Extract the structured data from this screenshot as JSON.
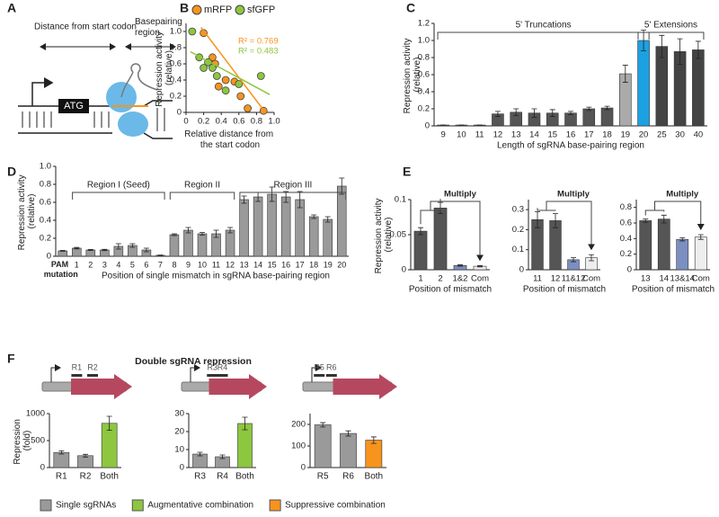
{
  "panel_labels": [
    "A",
    "B",
    "C",
    "D",
    "E",
    "F"
  ],
  "panel_a": {
    "distance_label": "Distance from start codon",
    "basepairing_label": "Basepairing region",
    "start_codon": "ATG"
  },
  "panel_f_title": "Double sgRNA repression",
  "legend_f": [
    {
      "name": "Single sgRNAs",
      "color": "#9a9a9a"
    },
    {
      "name": "Augmentative combination",
      "color": "#8dc63f"
    },
    {
      "name": "Suppressive combination",
      "color": "#f7941d"
    }
  ],
  "chart_data": [
    {
      "type": "scatter",
      "xlabel": "Relative distance from the start codon",
      "ylabel": "Repression activity (relative)",
      "xlim": [
        0,
        1
      ],
      "ylim": [
        0,
        1.1
      ],
      "xticks": [
        0,
        0.2,
        0.4,
        0.6,
        0.8,
        {
          "value": 1,
          "label": "1.0"
        }
      ],
      "yticks": [
        0,
        0.2,
        0.4,
        0.6,
        0.8,
        {
          "value": 1,
          "label": "1.0"
        }
      ],
      "series": [
        {
          "name": "mRFP",
          "color": "#f7941d",
          "annotation": "R² = 0.769",
          "x": [
            0.2,
            0.3,
            0.33,
            0.37,
            0.45,
            0.55,
            0.62,
            0.7,
            0.88
          ],
          "y": [
            0.98,
            0.68,
            0.6,
            0.32,
            0.4,
            0.38,
            0.2,
            0.05,
            0.02
          ],
          "fit_x": [
            0.17,
            0.9
          ],
          "fit_y": [
            1.05,
            0
          ]
        },
        {
          "name": "sfGFP",
          "color": "#8dc63f",
          "annotation": "R² = 0.483",
          "x": [
            0.07,
            0.15,
            0.2,
            0.25,
            0.3,
            0.35,
            0.45,
            0.6,
            0.85
          ],
          "y": [
            1.0,
            0.68,
            0.55,
            0.62,
            0.55,
            0.45,
            0.27,
            0.35,
            0.45
          ],
          "fit_x": [
            0.05,
            0.95
          ],
          "fit_y": [
            0.75,
            0.22
          ]
        }
      ]
    },
    {
      "type": "bar",
      "xlabel": "Length of sgRNA base-pairing region",
      "ylabel": "Repression activity (relative)",
      "brackets": [
        "5' Truncations",
        "5' Extensions"
      ],
      "categories": [
        "9",
        "10",
        "11",
        "12",
        "13",
        "14",
        "15",
        "16",
        "17",
        "18",
        "19",
        "20",
        "25",
        "30",
        "40"
      ],
      "values": [
        0.01,
        0.01,
        0.01,
        0.14,
        0.16,
        0.15,
        0.15,
        0.15,
        0.2,
        0.21,
        0.61,
        1.0,
        0.93,
        0.87,
        0.89
      ],
      "errors": [
        0,
        0,
        0,
        0.03,
        0.04,
        0.05,
        0.04,
        0.02,
        0.02,
        0.02,
        0.1,
        0.12,
        0.13,
        0.15,
        0.1
      ],
      "colors": [
        "#555",
        "#555",
        "#555",
        "#555",
        "#555",
        "#555",
        "#555",
        "#555",
        "#555",
        "#555",
        "#aaa",
        "#1ba1e2",
        "#444",
        "#444",
        "#444"
      ],
      "ylim": [
        0,
        1.2
      ],
      "yticks": [
        0,
        0.2,
        0.4,
        0.6,
        0.8,
        {
          "value": 1,
          "label": "1.0"
        },
        1.2
      ]
    },
    {
      "type": "bar",
      "xlabel": "Position of single mismatch in sgRNA base-pairing region",
      "ylabel": "Repression activity (relative)",
      "brackets": [
        "Region I (Seed)",
        "Region II",
        "Region III"
      ],
      "categories": [
        "PAM mutation",
        "1",
        "2",
        "3",
        "4",
        "5",
        "6",
        "7",
        "8",
        "9",
        "10",
        "11",
        "12",
        "13",
        "14",
        "15",
        "16",
        "17",
        "18",
        "19",
        "20"
      ],
      "values": [
        0.06,
        0.09,
        0.07,
        0.07,
        0.11,
        0.12,
        0.07,
        0.01,
        0.24,
        0.29,
        0.25,
        0.25,
        0.29,
        0.63,
        0.66,
        0.69,
        0.66,
        0.63,
        0.44,
        0.41,
        0.78
      ],
      "errors": [
        0.005,
        0.008,
        0.006,
        0.007,
        0.03,
        0.02,
        0.02,
        0.003,
        0.01,
        0.03,
        0.015,
        0.04,
        0.03,
        0.04,
        0.05,
        0.08,
        0.06,
        0.09,
        0.02,
        0.03,
        0.09
      ],
      "color": "#9a9a9a",
      "ylim": [
        0,
        1
      ],
      "yticks": [
        0,
        0.2,
        0.4,
        0.6,
        0.8,
        {
          "value": 1,
          "label": "1.0"
        }
      ]
    },
    {
      "type": "bar",
      "xlabel": "Position of mismatch",
      "ylabel": "Repression activity (relative)",
      "annotation": "Multiply",
      "categories": [
        "1",
        "2",
        "1&2",
        "Com"
      ],
      "values": [
        0.055,
        0.088,
        0.006,
        0.005
      ],
      "errors": [
        0.005,
        0.008,
        0.001,
        0.001
      ],
      "colors": [
        "#555",
        "#555",
        "#7b8fc0",
        "#eee"
      ],
      "ylim": [
        0,
        0.1
      ],
      "yticks": [
        0,
        0.05,
        0.1
      ]
    },
    {
      "type": "bar",
      "xlabel": "Position of mismatch",
      "annotation": "Multiply",
      "categories": [
        "11",
        "12",
        "11&12",
        "Com"
      ],
      "values": [
        0.25,
        0.245,
        0.05,
        0.06
      ],
      "errors": [
        0.04,
        0.035,
        0.01,
        0.015
      ],
      "colors": [
        "#555",
        "#555",
        "#7b8fc0",
        "#eee"
      ],
      "ylim": [
        0,
        0.35
      ],
      "yticks": [
        0,
        0.1,
        0.2,
        0.3
      ]
    },
    {
      "type": "bar",
      "xlabel": "Position of mismatch",
      "annotation": "Multiply",
      "categories": [
        "13",
        "14",
        "13&14",
        "Com"
      ],
      "values": [
        0.63,
        0.65,
        0.39,
        0.42
      ],
      "errors": [
        0.02,
        0.05,
        0.02,
        0.03
      ],
      "colors": [
        "#555",
        "#555",
        "#7b8fc0",
        "#eee"
      ],
      "ylim": [
        0,
        0.9
      ],
      "yticks": [
        0,
        0.2,
        0.4,
        0.6,
        0.8
      ]
    },
    {
      "type": "bar",
      "ylabel": "Repression (fold)",
      "guide_labels": [
        "R1",
        "R2"
      ],
      "categories": [
        "R1",
        "R2",
        "Both"
      ],
      "values": [
        280,
        220,
        820
      ],
      "errors": [
        30,
        25,
        130
      ],
      "colors": [
        "#9a9a9a",
        "#9a9a9a",
        "#8dc63f"
      ],
      "ylim": [
        0,
        1000
      ],
      "yticks": [
        0,
        500,
        1000
      ]
    },
    {
      "type": "bar",
      "guide_labels": [
        "R3",
        "R4"
      ],
      "categories": [
        "R3",
        "R4",
        "Both"
      ],
      "values": [
        7.5,
        6,
        24.5
      ],
      "errors": [
        1,
        1,
        3.5
      ],
      "colors": [
        "#9a9a9a",
        "#9a9a9a",
        "#8dc63f"
      ],
      "ylim": [
        0,
        30
      ],
      "yticks": [
        0,
        10,
        20,
        30
      ]
    },
    {
      "type": "bar",
      "guide_labels": [
        "R5",
        "R6"
      ],
      "categories": [
        "R5",
        "R6",
        "Both"
      ],
      "values": [
        198,
        158,
        127
      ],
      "errors": [
        10,
        12,
        15
      ],
      "colors": [
        "#9a9a9a",
        "#9a9a9a",
        "#f7941d"
      ],
      "ylim": [
        0,
        250
      ],
      "yticks": [
        0,
        100,
        200
      ]
    }
  ]
}
